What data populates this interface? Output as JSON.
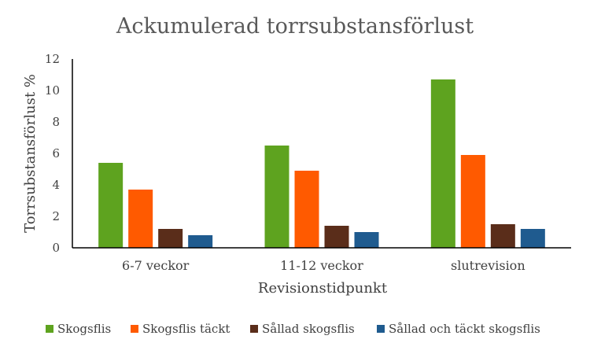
{
  "chart_data": {
    "type": "bar",
    "title": "Ackumulerad torrsubstansförlust",
    "xlabel": "Revisionstidpunkt",
    "ylabel": "Torrsubstansförlust %",
    "ylim": [
      0,
      12
    ],
    "yticks": [
      0,
      2,
      4,
      6,
      8,
      10,
      12
    ],
    "categories": [
      "6-7 veckor",
      "11-12 veckor",
      "slutrevision"
    ],
    "series": [
      {
        "name": "Skogsflis",
        "color": "#5ea31f",
        "values": [
          5.4,
          6.5,
          10.7
        ]
      },
      {
        "name": "Skogsflis täckt",
        "color": "#ff5a00",
        "values": [
          3.7,
          4.9,
          5.9
        ]
      },
      {
        "name": "Sållad skogsflis",
        "color": "#5a2d1a",
        "values": [
          1.2,
          1.4,
          1.5
        ]
      },
      {
        "name": "Sållad och täckt skogsflis",
        "color": "#1f5b8f",
        "values": [
          0.8,
          1.0,
          1.2
        ]
      }
    ],
    "grid": false,
    "legend": "bottom"
  }
}
